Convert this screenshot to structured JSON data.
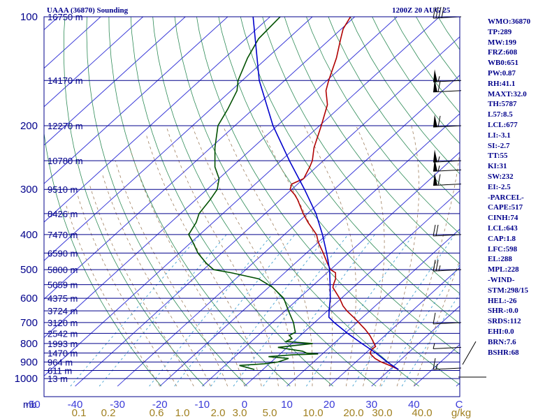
{
  "header": {
    "station": "UAAA (36870) Sounding",
    "time": "1200Z 20 AUG 25"
  },
  "indices": [
    "WMO:36870",
    "TP:289",
    "MW:199",
    "FRZ:608",
    "WB0:651",
    "PW:0.87",
    "RH:41.1",
    "MAXT:32.0",
    "TH:5787",
    "L57:8.5",
    "LCL:677",
    "LI:-3.1",
    "SI:-2.7",
    "TT:55",
    "KI:31",
    "SW:232",
    "EI:-2.5",
    "-PARCEL-",
    "CAPE:517",
    "CINH:74",
    "LCL:643",
    "CAP:1.8",
    "LFC:598",
    "EL:288",
    "MPL:228",
    "-WIND-",
    "STM:298/15",
    "HEL:-26",
    "SHR-:0.0",
    "SRDS:112",
    "EHI:0.0",
    "BRN:7.6",
    "BSHR:68"
  ],
  "colors": {
    "isobar": "#00008b",
    "isotherm": "#3a3ad8",
    "dry_adiabat": "#2e8b57",
    "moist_adiabat": "#a08060",
    "mixing_ratio": "#40a0d0",
    "temperature": "#b00000",
    "dewpoint": "#005000",
    "parcel": "#0000cc",
    "wind_barb": "#000000",
    "mixing_ratio_label": "#a08020"
  },
  "chart_data": {
    "type": "skew-t",
    "title": "UAAA (36870) Sounding",
    "xlabel": "C",
    "secondary_xlabel": "g/kg",
    "pressure_levels": [
      100,
      200,
      300,
      400,
      500,
      600,
      700,
      800,
      900,
      1000
    ],
    "pressure_unit_label": "mb",
    "height_labels": [
      {
        "p": 100,
        "label": "16750 m"
      },
      {
        "p": 150,
        "label": "14170 m"
      },
      {
        "p": 200,
        "label": "12270 m"
      },
      {
        "p": 250,
        "label": "10780 m"
      },
      {
        "p": 300,
        "label": "9510 m"
      },
      {
        "p": 350,
        "label": "8426 m"
      },
      {
        "p": 400,
        "label": "7470 m"
      },
      {
        "p": 450,
        "label": "6590 m"
      },
      {
        "p": 500,
        "label": "5800 m"
      },
      {
        "p": 550,
        "label": "5059 m"
      },
      {
        "p": 600,
        "label": "4375 m"
      },
      {
        "p": 650,
        "label": "3724 m"
      },
      {
        "p": 700,
        "label": "3120 m"
      },
      {
        "p": 750,
        "label": "2542 m"
      },
      {
        "p": 800,
        "label": "1993 m"
      },
      {
        "p": 850,
        "label": "1470 m"
      },
      {
        "p": 900,
        "label": "964 m"
      },
      {
        "p": 950,
        "label": "611 m"
      },
      {
        "p": 1000,
        "label": "13 m"
      }
    ],
    "temperature_ticks": [
      -50,
      -40,
      -30,
      -20,
      -10,
      0,
      10,
      20,
      30,
      40
    ],
    "temperature_tick_labels": [
      "-50",
      "-40",
      "-30",
      "-20",
      "-10",
      "0",
      "10",
      "20",
      "30",
      "40"
    ],
    "mixing_ratio_labels": [
      "0.1",
      "0.2",
      "0.6",
      "1.0",
      "2.0",
      "3.0",
      "5.0",
      "10.0",
      "20.0",
      "30.0",
      "40.0"
    ],
    "series": [
      {
        "key": "temperature",
        "points": [
          [
            944,
            32.0
          ],
          [
            925,
            29.6
          ],
          [
            900,
            26.0
          ],
          [
            880,
            23.6
          ],
          [
            860,
            21.8
          ],
          [
            850,
            21.0
          ],
          [
            830,
            20.5
          ],
          [
            815,
            20.6
          ],
          [
            800,
            19.5
          ],
          [
            780,
            18.0
          ],
          [
            760,
            16.4
          ],
          [
            730,
            13.6
          ],
          [
            700,
            10.4
          ],
          [
            680,
            8.2
          ],
          [
            650,
            4.6
          ],
          [
            630,
            2.4
          ],
          [
            600,
            -0.4
          ],
          [
            560,
            -4.8
          ],
          [
            550,
            -5.4
          ],
          [
            530,
            -6.4
          ],
          [
            510,
            -8.0
          ],
          [
            500,
            -10.0
          ],
          [
            480,
            -12.4
          ],
          [
            450,
            -16.0
          ],
          [
            420,
            -20.0
          ],
          [
            400,
            -22.4
          ],
          [
            370,
            -27.6
          ],
          [
            350,
            -31.0
          ],
          [
            320,
            -36.0
          ],
          [
            310,
            -38.0
          ],
          [
            300,
            -40.4
          ],
          [
            290,
            -41.4
          ],
          [
            280,
            -40.0
          ],
          [
            260,
            -41.6
          ],
          [
            250,
            -42.6
          ],
          [
            230,
            -45.6
          ],
          [
            200,
            -49.6
          ],
          [
            175,
            -53.6
          ],
          [
            160,
            -57.6
          ],
          [
            150,
            -59.6
          ],
          [
            130,
            -63.6
          ],
          [
            115,
            -67.6
          ],
          [
            108,
            -69.6
          ],
          [
            100,
            -71.0
          ]
        ]
      },
      {
        "key": "dewpoint",
        "points": [
          [
            944,
            -2.0
          ],
          [
            930,
            -4.6
          ],
          [
            920,
            -6.6
          ],
          [
            910,
            -1.2
          ],
          [
            900,
            1.6
          ],
          [
            880,
            3.2
          ],
          [
            870,
            -2.0
          ],
          [
            860,
            3.2
          ],
          [
            855,
            9.0
          ],
          [
            850,
            6.0
          ],
          [
            840,
            4.6
          ],
          [
            820,
            -2.2
          ],
          [
            800,
            5.0
          ],
          [
            790,
            -1.8
          ],
          [
            775,
            -1.2
          ],
          [
            760,
            -2.6
          ],
          [
            745,
            -2.0
          ],
          [
            730,
            -3.0
          ],
          [
            700,
            -5.0
          ],
          [
            650,
            -9.2
          ],
          [
            600,
            -13.6
          ],
          [
            560,
            -19.0
          ],
          [
            530,
            -24.6
          ],
          [
            510,
            -32.6
          ],
          [
            500,
            -37.6
          ],
          [
            480,
            -41.0
          ],
          [
            450,
            -45.6
          ],
          [
            420,
            -49.6
          ],
          [
            400,
            -52.6
          ],
          [
            370,
            -54.0
          ],
          [
            350,
            -55.6
          ],
          [
            320,
            -56.6
          ],
          [
            300,
            -57.6
          ],
          [
            280,
            -60.0
          ],
          [
            260,
            -64.0
          ],
          [
            250,
            -65.6
          ],
          [
            230,
            -69.0
          ],
          [
            200,
            -74.0
          ],
          [
            180,
            -76.0
          ],
          [
            160,
            -78.6
          ],
          [
            150,
            -81.0
          ],
          [
            130,
            -84.6
          ],
          [
            115,
            -87.0
          ],
          [
            100,
            -87.6
          ]
        ]
      },
      {
        "key": "parcel",
        "points": [
          [
            944,
            32.0
          ],
          [
            900,
            27.4
          ],
          [
            850,
            22.4
          ],
          [
            800,
            16.6
          ],
          [
            750,
            10.6
          ],
          [
            700,
            4.6
          ],
          [
            677,
            2.0
          ],
          [
            650,
            0.4
          ],
          [
            600,
            -2.6
          ],
          [
            550,
            -6.2
          ],
          [
            500,
            -10.2
          ],
          [
            450,
            -15.2
          ],
          [
            400,
            -21.0
          ],
          [
            350,
            -28.0
          ],
          [
            300,
            -37.0
          ],
          [
            250,
            -48.0
          ],
          [
            200,
            -61.0
          ],
          [
            150,
            -76.0
          ],
          [
            100,
            -94.0
          ]
        ]
      }
    ],
    "wind_barbs": [
      {
        "p": 935,
        "spd": 15
      },
      {
        "p": 820,
        "spd": 5
      },
      {
        "p": 700,
        "spd": 10
      },
      {
        "p": 500,
        "spd": 25
      },
      {
        "p": 400,
        "spd": 20
      },
      {
        "p": 290,
        "spd": 60
      },
      {
        "p": 265,
        "spd": 55
      },
      {
        "p": 250,
        "spd": 55
      },
      {
        "p": 200,
        "spd": 60
      },
      {
        "p": 160,
        "spd": 60
      },
      {
        "p": 150,
        "spd": 55
      },
      {
        "p": 100,
        "spd": 40
      }
    ],
    "ylim": [
      100,
      1050
    ],
    "xlim": [
      -50,
      50
    ],
    "grid": true,
    "legend": "right"
  }
}
